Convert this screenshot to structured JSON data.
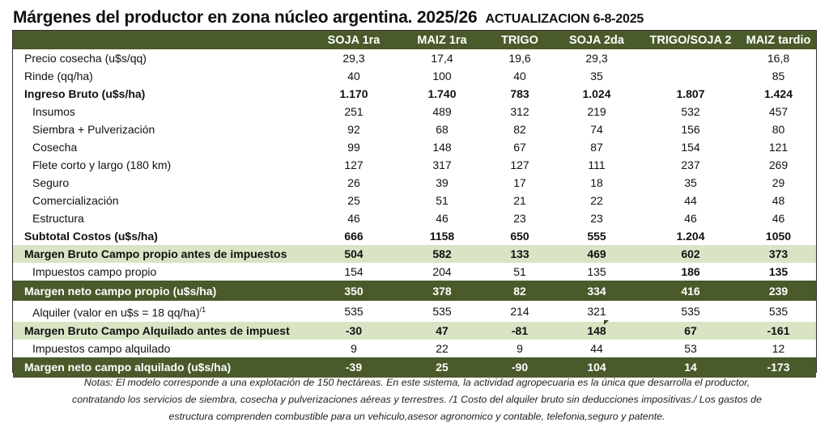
{
  "title": "Márgenes  del productor en zona núcleo argentina. 2025/26",
  "subtitle": "ACTUALIZACION 6-8-2025",
  "chart_data": {
    "type": "table",
    "columns": [
      "SOJA 1ra",
      "MAIZ 1ra",
      "TRIGO",
      "SOJA 2da",
      "TRIGO/SOJA 2",
      "MAIZ tardio"
    ],
    "rows": [
      {
        "label": "Precio cosecha (u$s/qq)",
        "style": "normal",
        "indent": false,
        "values": [
          "29,3",
          "17,4",
          "19,6",
          "29,3",
          "",
          "16,8"
        ]
      },
      {
        "label": "Rinde (qq/ha)",
        "style": "normal",
        "indent": false,
        "values": [
          "40",
          "100",
          "40",
          "35",
          "",
          "85"
        ]
      },
      {
        "label": "Ingreso Bruto (u$s/ha)",
        "style": "bold",
        "indent": false,
        "values": [
          "1.170",
          "1.740",
          "783",
          "1.024",
          "1.807",
          "1.424"
        ]
      },
      {
        "label": "Insumos",
        "style": "normal",
        "indent": true,
        "values": [
          "251",
          "489",
          "312",
          "219",
          "532",
          "457"
        ]
      },
      {
        "label": "Siembra + Pulverización",
        "style": "normal",
        "indent": true,
        "values": [
          "92",
          "68",
          "82",
          "74",
          "156",
          "80"
        ]
      },
      {
        "label": "Cosecha",
        "style": "normal",
        "indent": true,
        "values": [
          "99",
          "148",
          "67",
          "87",
          "154",
          "121"
        ]
      },
      {
        "label": "Flete corto y largo (180 km)",
        "style": "normal",
        "indent": true,
        "values": [
          "127",
          "317",
          "127",
          "111",
          "237",
          "269"
        ]
      },
      {
        "label": "Seguro",
        "style": "normal",
        "indent": true,
        "values": [
          "26",
          "39",
          "17",
          "18",
          "35",
          "29"
        ]
      },
      {
        "label": "Comercialización",
        "style": "normal",
        "indent": true,
        "values": [
          "25",
          "51",
          "21",
          "22",
          "44",
          "48"
        ]
      },
      {
        "label": "Estructura",
        "style": "normal",
        "indent": true,
        "values": [
          "46",
          "46",
          "23",
          "23",
          "46",
          "46"
        ]
      },
      {
        "label": "Subtotal Costos (u$s/ha)",
        "style": "bold",
        "indent": false,
        "values": [
          "666",
          "1158",
          "650",
          "555",
          "1.204",
          "1050"
        ]
      },
      {
        "label": "Margen Bruto Campo propio antes de impuestos",
        "style": "light",
        "indent": false,
        "values": [
          "504",
          "582",
          "133",
          "469",
          "602",
          "373"
        ]
      },
      {
        "label": "Impuestos  campo propio",
        "style": "normal",
        "indent": true,
        "values": [
          "154",
          "204",
          "51",
          "135",
          "186",
          "135"
        ]
      },
      {
        "label": "Margen neto campo propio (u$s/ha)",
        "style": "dark",
        "indent": false,
        "values": [
          "350",
          "378",
          "82",
          "334",
          "416",
          "239"
        ]
      },
      {
        "label": "Alquiler (valor en u$s = 18 qq/ha)",
        "label_sup": "/1",
        "style": "normal",
        "indent": true,
        "values": [
          "535",
          "535",
          "214",
          "321",
          "535",
          "535"
        ]
      },
      {
        "label": "Margen Bruto Campo Alquilado antes de impuest",
        "style": "light",
        "indent": false,
        "values": [
          "-30",
          "47",
          "-81",
          "148",
          "67",
          "-161"
        ]
      },
      {
        "label": "Impuestos campo alquilado",
        "style": "normal",
        "indent": true,
        "values": [
          "9",
          "22",
          "9",
          "44",
          "53",
          "12"
        ]
      },
      {
        "label": "Margen neto campo alquilado (u$s/ha)",
        "style": "dark",
        "indent": false,
        "values": [
          "-39",
          "25",
          "-90",
          "104",
          "14",
          "-173"
        ]
      }
    ]
  },
  "notes": [
    "Notas: El modelo corresponde a una explotación de 150 hectáreas. En este sistema, la actividad agropecuaria es la única que desarrolla el productor,",
    "contratando los servicios de siembra, cosecha y pulverizaciones aéreas y terrestres.  /1 Costo del alquiler bruto sin deducciones impositivas./ Los gastos de",
    "estructura comprenden combustible para un vehiculo,asesor agronomico y contable, telefonia,seguro y patente."
  ],
  "colors": {
    "dark_band": "#4a5a2a",
    "light_band": "#d9e4c4"
  }
}
